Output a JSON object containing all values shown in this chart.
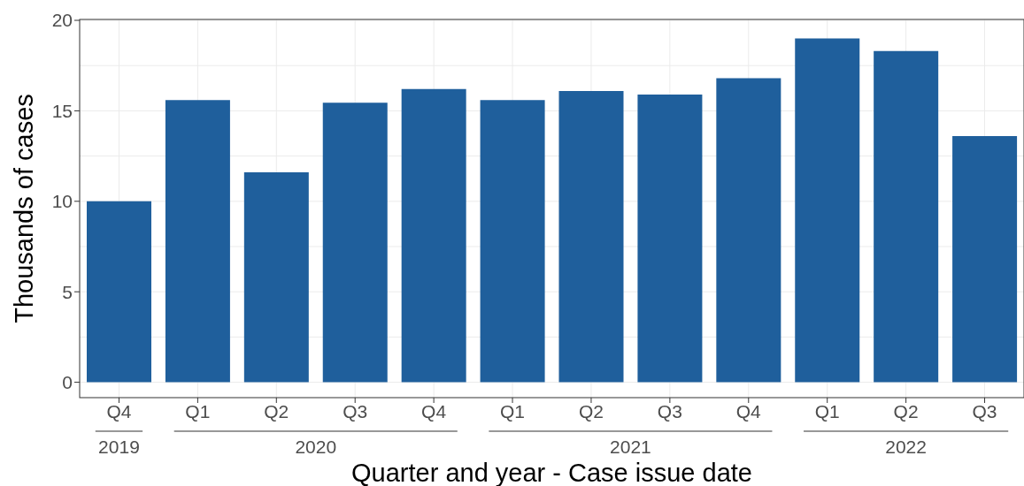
{
  "chart_data": {
    "type": "bar",
    "categories": [
      "Q4",
      "Q1",
      "Q2",
      "Q3",
      "Q4",
      "Q1",
      "Q2",
      "Q3",
      "Q4",
      "Q1",
      "Q2",
      "Q3"
    ],
    "values": [
      10.0,
      15.6,
      11.6,
      15.45,
      16.2,
      15.6,
      16.1,
      15.9,
      16.8,
      19.0,
      18.3,
      13.6
    ],
    "color": "#1f5f9c",
    "xlabel": "Quarter and year - Case issue date",
    "ylabel": "Thousands of cases",
    "ylim": [
      -0.85,
      20.05
    ],
    "yticks": [
      0,
      5,
      10,
      15,
      20
    ],
    "annotations": [
      "2019",
      "2020",
      "2021",
      "2022"
    ],
    "grid": true
  }
}
